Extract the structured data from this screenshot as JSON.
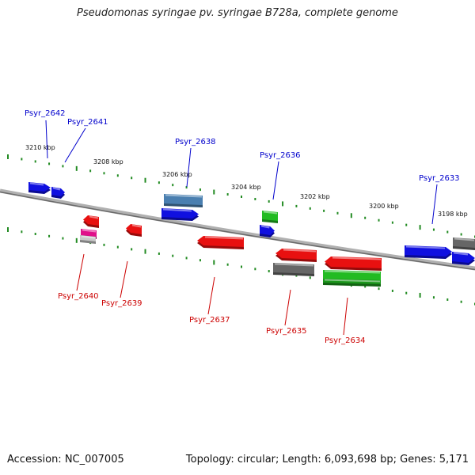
{
  "title": "Pseudomonas syringae pv. syringae B728a, complete genome",
  "accession_text": "Accession: NC_007005",
  "summary_text": "Topology: circular; Length: 6,093,698 bp; Genes: 5,171",
  "colors": {
    "forward_gene_label": "#0000cc",
    "reverse_gene_label": "#cc0000",
    "scale_ticks": "#228b22",
    "backbone": "#8a8a8a",
    "feature_blue": "#1010e0",
    "feature_steelblue": "#4a7fb0",
    "feature_red": "#e81010",
    "feature_green": "#22bb22",
    "feature_gray": "#666666",
    "feature_magenta": "#e0108a",
    "feature_lightgray": "#c8c8c8"
  },
  "scale_labels": [
    "3210 kbp",
    "3208 kbp",
    "3206 kbp",
    "3204 kbp",
    "3202 kbp",
    "3200 kbp",
    "3198 kbp"
  ],
  "forward_genes": [
    "Psyr_2642",
    "Psyr_2641",
    "Psyr_2638",
    "Psyr_2636",
    "Psyr_2633"
  ],
  "reverse_genes": [
    "Psyr_2640",
    "Psyr_2639",
    "Psyr_2637",
    "Psyr_2635",
    "Psyr_2634"
  ]
}
